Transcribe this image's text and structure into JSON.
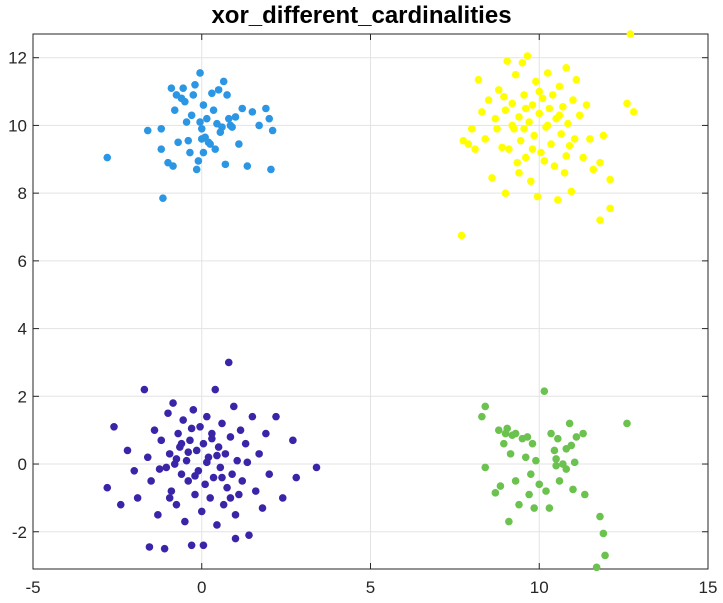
{
  "chart_data": {
    "type": "scatter",
    "title": "xor_different_cardinalities",
    "xlim": [
      -5,
      15
    ],
    "ylim": [
      -3.1,
      12.7
    ],
    "xticks": [
      -5,
      0,
      5,
      10,
      15
    ],
    "yticks": [
      -2,
      0,
      2,
      4,
      6,
      8,
      10,
      12
    ],
    "xtick_labels": [
      "-5",
      "0",
      "5",
      "10",
      "15"
    ],
    "ytick_labels": [
      "-2",
      "0",
      "2",
      "4",
      "6",
      "8",
      "10",
      "12"
    ],
    "grid": true,
    "legend": "none",
    "series": [
      {
        "color": "#2b96e3",
        "points": [
          [
            -2.8,
            9.05
          ],
          [
            -1.6,
            9.85
          ],
          [
            -1.2,
            9.3
          ],
          [
            -1.2,
            9.9
          ],
          [
            -1.15,
            7.85
          ],
          [
            -1.0,
            8.9
          ],
          [
            -0.9,
            11.1
          ],
          [
            -0.85,
            8.8
          ],
          [
            -0.8,
            10.45
          ],
          [
            -0.75,
            10.9
          ],
          [
            -0.7,
            9.5
          ],
          [
            -0.6,
            10.8
          ],
          [
            -0.55,
            11.1
          ],
          [
            -0.5,
            10.7
          ],
          [
            -0.45,
            10.1
          ],
          [
            -0.4,
            9.55
          ],
          [
            -0.35,
            9.2
          ],
          [
            -0.3,
            10.3
          ],
          [
            -0.25,
            10.9
          ],
          [
            -0.2,
            11.2
          ],
          [
            -0.15,
            8.7
          ],
          [
            -0.1,
            8.95
          ],
          [
            -0.05,
            10.1
          ],
          [
            0.0,
            9.6
          ],
          [
            0.0,
            9.9
          ],
          [
            0.05,
            10.6
          ],
          [
            0.05,
            9.2
          ],
          [
            0.1,
            9.65
          ],
          [
            0.15,
            10.2
          ],
          [
            0.2,
            9.5
          ],
          [
            0.3,
            10.95
          ],
          [
            0.35,
            10.45
          ],
          [
            0.4,
            9.3
          ],
          [
            0.45,
            10.05
          ],
          [
            0.5,
            11.05
          ],
          [
            0.55,
            9.8
          ],
          [
            0.6,
            9.95
          ],
          [
            0.65,
            11.3
          ],
          [
            0.7,
            8.85
          ],
          [
            0.75,
            10.9
          ],
          [
            0.8,
            10.2
          ],
          [
            0.85,
            10.0
          ],
          [
            0.9,
            9.95
          ],
          [
            1.0,
            10.25
          ],
          [
            1.1,
            9.45
          ],
          [
            1.2,
            10.5
          ],
          [
            1.35,
            8.8
          ],
          [
            1.5,
            10.4
          ],
          [
            1.7,
            10.0
          ],
          [
            1.9,
            10.5
          ],
          [
            2.0,
            10.2
          ],
          [
            2.05,
            8.7
          ],
          [
            2.1,
            9.85
          ],
          [
            -0.05,
            11.55
          ],
          [
            0.25,
            9.45
          ]
        ]
      },
      {
        "color": "#ffff00",
        "points": [
          [
            7.7,
            6.75
          ],
          [
            7.75,
            9.55
          ],
          [
            7.9,
            9.45
          ],
          [
            8.0,
            9.9
          ],
          [
            8.1,
            9.3
          ],
          [
            8.2,
            11.35
          ],
          [
            8.3,
            10.4
          ],
          [
            8.4,
            9.6
          ],
          [
            8.5,
            10.75
          ],
          [
            8.6,
            8.45
          ],
          [
            8.7,
            10.2
          ],
          [
            8.75,
            9.9
          ],
          [
            8.8,
            11.05
          ],
          [
            8.9,
            9.35
          ],
          [
            9.0,
            10.45
          ],
          [
            9.0,
            8.0
          ],
          [
            9.05,
            11.9
          ],
          [
            9.1,
            9.3
          ],
          [
            9.2,
            10.65
          ],
          [
            9.25,
            9.9
          ],
          [
            9.3,
            11.5
          ],
          [
            9.35,
            8.9
          ],
          [
            9.4,
            10.25
          ],
          [
            9.45,
            9.55
          ],
          [
            9.5,
            11.85
          ],
          [
            9.55,
            10.9
          ],
          [
            9.6,
            9.05
          ],
          [
            9.65,
            12.05
          ],
          [
            9.7,
            10.1
          ],
          [
            9.75,
            8.35
          ],
          [
            9.8,
            10.6
          ],
          [
            9.85,
            9.7
          ],
          [
            9.9,
            11.3
          ],
          [
            9.95,
            7.9
          ],
          [
            10.0,
            10.35
          ],
          [
            10.05,
            9.2
          ],
          [
            10.1,
            10.8
          ],
          [
            10.15,
            8.95
          ],
          [
            10.2,
            9.95
          ],
          [
            10.25,
            11.55
          ],
          [
            10.3,
            10.5
          ],
          [
            10.35,
            9.45
          ],
          [
            10.4,
            10.9
          ],
          [
            10.45,
            8.8
          ],
          [
            10.5,
            10.2
          ],
          [
            10.55,
            7.8
          ],
          [
            10.6,
            11.15
          ],
          [
            10.65,
            9.75
          ],
          [
            10.7,
            10.55
          ],
          [
            10.75,
            8.6
          ],
          [
            10.8,
            11.7
          ],
          [
            10.85,
            10.05
          ],
          [
            10.9,
            9.4
          ],
          [
            10.95,
            8.05
          ],
          [
            11.0,
            10.75
          ],
          [
            11.05,
            9.6
          ],
          [
            11.1,
            11.35
          ],
          [
            11.2,
            10.3
          ],
          [
            11.3,
            9.05
          ],
          [
            11.4,
            10.6
          ],
          [
            11.5,
            9.6
          ],
          [
            11.6,
            8.7
          ],
          [
            11.8,
            8.9
          ],
          [
            11.8,
            7.2
          ],
          [
            11.9,
            9.7
          ],
          [
            12.1,
            7.55
          ],
          [
            12.1,
            8.4
          ],
          [
            12.6,
            10.65
          ],
          [
            12.7,
            12.7
          ],
          [
            12.8,
            10.4
          ],
          [
            9.4,
            8.6
          ],
          [
            8.95,
            10.85
          ],
          [
            9.55,
            9.9
          ],
          [
            10.25,
            10.0
          ],
          [
            9.8,
            9.3
          ],
          [
            10.6,
            10.3
          ],
          [
            10.0,
            11.0
          ],
          [
            9.2,
            10.0
          ],
          [
            10.8,
            9.1
          ],
          [
            9.6,
            10.5
          ]
        ]
      },
      {
        "color": "#3c24a8",
        "points": [
          [
            -2.8,
            -0.7
          ],
          [
            -2.6,
            1.1
          ],
          [
            -2.4,
            -1.2
          ],
          [
            -2.2,
            0.4
          ],
          [
            -2.0,
            -0.2
          ],
          [
            -1.9,
            -1.0
          ],
          [
            -1.7,
            2.2
          ],
          [
            -1.6,
            0.2
          ],
          [
            -1.5,
            -0.5
          ],
          [
            -1.4,
            1.0
          ],
          [
            -1.3,
            -1.5
          ],
          [
            -1.2,
            0.7
          ],
          [
            -1.1,
            -2.5
          ],
          [
            -1.05,
            -0.1
          ],
          [
            -1.0,
            1.5
          ],
          [
            -0.95,
            0.3
          ],
          [
            -0.9,
            -0.8
          ],
          [
            -0.85,
            1.8
          ],
          [
            -0.8,
            0.0
          ],
          [
            -0.75,
            -1.2
          ],
          [
            -0.7,
            0.9
          ],
          [
            -0.65,
            0.5
          ],
          [
            -0.6,
            -0.3
          ],
          [
            -0.55,
            1.3
          ],
          [
            -0.5,
            -1.7
          ],
          [
            -0.45,
            0.1
          ],
          [
            -0.4,
            -0.5
          ],
          [
            -0.35,
            0.7
          ],
          [
            -0.3,
            -2.4
          ],
          [
            -0.25,
            1.6
          ],
          [
            -0.2,
            -0.9
          ],
          [
            -0.15,
            0.4
          ],
          [
            -0.1,
            -0.2
          ],
          [
            -0.05,
            1.1
          ],
          [
            0.0,
            -1.4
          ],
          [
            0.05,
            0.6
          ],
          [
            0.1,
            -0.6
          ],
          [
            0.15,
            1.4
          ],
          [
            0.2,
            0.2
          ],
          [
            0.25,
            -1.0
          ],
          [
            0.3,
            0.9
          ],
          [
            0.35,
            -0.4
          ],
          [
            0.4,
            2.2
          ],
          [
            0.45,
            -1.8
          ],
          [
            0.5,
            0.5
          ],
          [
            0.55,
            -0.1
          ],
          [
            0.6,
            1.2
          ],
          [
            0.65,
            -1.2
          ],
          [
            0.7,
            0.3
          ],
          [
            0.75,
            -0.7
          ],
          [
            0.8,
            3.0
          ],
          [
            0.85,
            0.8
          ],
          [
            0.9,
            -0.3
          ],
          [
            0.95,
            1.7
          ],
          [
            1.0,
            -1.5
          ],
          [
            1.05,
            0.1
          ],
          [
            1.1,
            -0.9
          ],
          [
            1.15,
            1.0
          ],
          [
            1.2,
            -0.5
          ],
          [
            1.3,
            0.6
          ],
          [
            1.4,
            -2.1
          ],
          [
            1.5,
            1.4
          ],
          [
            1.6,
            -0.8
          ],
          [
            1.7,
            0.3
          ],
          [
            1.8,
            -1.3
          ],
          [
            1.9,
            0.9
          ],
          [
            2.0,
            -0.3
          ],
          [
            2.2,
            1.4
          ],
          [
            2.4,
            -1.0
          ],
          [
            2.7,
            0.7
          ],
          [
            2.8,
            -0.4
          ],
          [
            3.4,
            -0.1
          ],
          [
            -0.75,
            0.15
          ],
          [
            -0.4,
            0.35
          ],
          [
            0.15,
            0.05
          ],
          [
            0.45,
            0.25
          ],
          [
            -0.2,
            -0.35
          ],
          [
            0.6,
            -0.4
          ],
          [
            -0.6,
            0.6
          ],
          [
            0.3,
            0.75
          ],
          [
            -1.25,
            -0.15
          ],
          [
            1.35,
            0.05
          ],
          [
            -0.3,
            1.05
          ],
          [
            0.85,
            -1.0
          ],
          [
            -0.95,
            -1.0
          ],
          [
            0.05,
            -2.4
          ],
          [
            1.0,
            -2.2
          ],
          [
            -1.55,
            -2.45
          ]
        ]
      },
      {
        "color": "#6bc24e",
        "points": [
          [
            8.3,
            1.4
          ],
          [
            8.4,
            1.7
          ],
          [
            8.4,
            -0.1
          ],
          [
            8.7,
            -0.85
          ],
          [
            8.8,
            1.0
          ],
          [
            8.85,
            -0.65
          ],
          [
            8.95,
            0.6
          ],
          [
            9.0,
            0.9
          ],
          [
            9.05,
            1.05
          ],
          [
            9.1,
            -1.7
          ],
          [
            9.15,
            0.3
          ],
          [
            9.2,
            0.85
          ],
          [
            9.3,
            -0.5
          ],
          [
            9.4,
            -1.2
          ],
          [
            9.5,
            0.75
          ],
          [
            9.6,
            0.2
          ],
          [
            9.65,
            0.8
          ],
          [
            9.7,
            -0.9
          ],
          [
            9.75,
            -0.3
          ],
          [
            9.8,
            0.6
          ],
          [
            9.85,
            -1.3
          ],
          [
            9.9,
            0.1
          ],
          [
            10.0,
            -0.6
          ],
          [
            10.15,
            2.15
          ],
          [
            10.2,
            -0.8
          ],
          [
            10.3,
            -1.3
          ],
          [
            10.35,
            0.9
          ],
          [
            10.45,
            0.4
          ],
          [
            10.5,
            -0.05
          ],
          [
            10.55,
            0.75
          ],
          [
            10.6,
            -0.5
          ],
          [
            10.7,
            0.0
          ],
          [
            10.8,
            -0.15
          ],
          [
            10.9,
            1.2
          ],
          [
            10.95,
            0.55
          ],
          [
            11.0,
            -0.75
          ],
          [
            11.05,
            0.05
          ],
          [
            11.1,
            0.8
          ],
          [
            11.3,
            0.9
          ],
          [
            11.35,
            -0.9
          ],
          [
            11.7,
            -3.05
          ],
          [
            11.8,
            -1.55
          ],
          [
            11.9,
            -2.05
          ],
          [
            11.95,
            -2.7
          ],
          [
            12.6,
            1.2
          ],
          [
            10.5,
            0.15
          ],
          [
            10.8,
            0.45
          ],
          [
            9.3,
            0.9
          ]
        ]
      }
    ]
  }
}
